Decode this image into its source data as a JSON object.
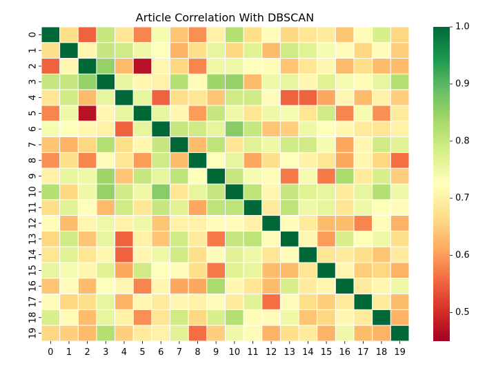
{
  "chart_data": {
    "type": "heatmap",
    "title": "Article Correlation With DBSCAN",
    "xlabel": "",
    "ylabel": "",
    "x": [
      "0",
      "1",
      "2",
      "3",
      "4",
      "5",
      "6",
      "7",
      "8",
      "9",
      "10",
      "11",
      "12",
      "13",
      "14",
      "15",
      "16",
      "17",
      "18",
      "19"
    ],
    "y": [
      "0",
      "1",
      "2",
      "3",
      "4",
      "5",
      "6",
      "7",
      "8",
      "9",
      "10",
      "11",
      "12",
      "13",
      "14",
      "15",
      "16",
      "17",
      "18",
      "19"
    ],
    "colormap": "RdYlGn",
    "vmin": 0.45,
    "vmax": 1.0,
    "colorbar": {
      "ticks": [
        1.0,
        0.9,
        0.8,
        0.7,
        0.6,
        0.5
      ],
      "tick_labels": [
        "1.0",
        "0.9",
        "0.8",
        "0.7",
        "0.6",
        "0.5"
      ]
    },
    "grid": true,
    "values": [
      [
        1.0,
        0.67,
        0.55,
        0.8,
        0.68,
        0.58,
        0.74,
        0.64,
        0.59,
        0.7,
        0.82,
        0.67,
        0.72,
        0.66,
        0.68,
        0.69,
        0.64,
        0.72,
        0.78,
        0.66
      ],
      [
        0.67,
        1.0,
        0.71,
        0.8,
        0.79,
        0.75,
        0.73,
        0.62,
        0.67,
        0.76,
        0.66,
        0.77,
        0.63,
        0.79,
        0.77,
        0.74,
        0.72,
        0.66,
        0.72,
        0.65
      ],
      [
        0.55,
        0.71,
        1.0,
        0.85,
        0.63,
        0.47,
        0.71,
        0.66,
        0.58,
        0.75,
        0.75,
        0.73,
        0.72,
        0.64,
        0.68,
        0.71,
        0.63,
        0.67,
        0.63,
        0.63
      ],
      [
        0.8,
        0.8,
        0.85,
        1.0,
        0.76,
        0.71,
        0.7,
        0.82,
        0.72,
        0.84,
        0.85,
        0.63,
        0.75,
        0.76,
        0.71,
        0.77,
        0.74,
        0.72,
        0.76,
        0.82
      ],
      [
        0.68,
        0.79,
        0.63,
        0.76,
        1.0,
        0.76,
        0.55,
        0.67,
        0.68,
        0.64,
        0.79,
        0.79,
        0.72,
        0.55,
        0.55,
        0.61,
        0.71,
        0.63,
        0.7,
        0.65
      ],
      [
        0.58,
        0.75,
        0.47,
        0.71,
        0.76,
        1.0,
        0.76,
        0.71,
        0.6,
        0.8,
        0.75,
        0.68,
        0.75,
        0.74,
        0.68,
        0.79,
        0.58,
        0.74,
        0.59,
        0.69
      ],
      [
        0.74,
        0.73,
        0.71,
        0.7,
        0.55,
        0.76,
        1.0,
        0.8,
        0.79,
        0.76,
        0.86,
        0.8,
        0.64,
        0.65,
        0.75,
        0.73,
        0.71,
        0.69,
        0.68,
        0.7
      ],
      [
        0.64,
        0.62,
        0.66,
        0.82,
        0.67,
        0.71,
        0.8,
        1.0,
        0.63,
        0.81,
        0.68,
        0.77,
        0.75,
        0.79,
        0.79,
        0.74,
        0.61,
        0.71,
        0.79,
        0.77
      ],
      [
        0.59,
        0.67,
        0.58,
        0.72,
        0.68,
        0.6,
        0.79,
        0.63,
        1.0,
        0.73,
        0.76,
        0.61,
        0.67,
        0.73,
        0.7,
        0.68,
        0.61,
        0.71,
        0.66,
        0.56
      ],
      [
        0.7,
        0.76,
        0.75,
        0.84,
        0.64,
        0.8,
        0.76,
        0.81,
        0.73,
        1.0,
        0.8,
        0.74,
        0.72,
        0.57,
        0.74,
        0.57,
        0.83,
        0.69,
        0.78,
        0.65
      ],
      [
        0.82,
        0.66,
        0.75,
        0.85,
        0.79,
        0.75,
        0.86,
        0.68,
        0.76,
        0.8,
        1.0,
        0.81,
        0.71,
        0.8,
        0.77,
        0.76,
        0.69,
        0.76,
        0.82,
        0.75
      ],
      [
        0.67,
        0.77,
        0.73,
        0.63,
        0.79,
        0.68,
        0.8,
        0.77,
        0.61,
        0.81,
        0.81,
        1.0,
        0.69,
        0.81,
        0.75,
        0.76,
        0.68,
        0.75,
        0.73,
        0.72
      ],
      [
        0.72,
        0.63,
        0.71,
        0.75,
        0.7,
        0.75,
        0.64,
        0.7,
        0.7,
        0.72,
        0.72,
        0.7,
        1.0,
        0.72,
        0.69,
        0.63,
        0.63,
        0.58,
        0.72,
        0.62
      ],
      [
        0.66,
        0.79,
        0.64,
        0.76,
        0.55,
        0.7,
        0.64,
        0.79,
        0.69,
        0.57,
        0.8,
        0.81,
        0.72,
        1.0,
        0.71,
        0.6,
        0.78,
        0.73,
        0.75,
        0.67
      ],
      [
        0.68,
        0.77,
        0.68,
        0.71,
        0.55,
        0.71,
        0.75,
        0.79,
        0.67,
        0.72,
        0.77,
        0.75,
        0.68,
        0.72,
        1.0,
        0.68,
        0.69,
        0.67,
        0.64,
        0.69
      ],
      [
        0.76,
        0.74,
        0.71,
        0.77,
        0.61,
        0.79,
        0.73,
        0.72,
        0.67,
        0.57,
        0.77,
        0.76,
        0.63,
        0.63,
        0.68,
        1.0,
        0.71,
        0.65,
        0.66,
        0.62
      ],
      [
        0.64,
        0.72,
        0.63,
        0.73,
        0.71,
        0.58,
        0.71,
        0.61,
        0.61,
        0.83,
        0.71,
        0.68,
        0.63,
        0.78,
        0.69,
        0.71,
        1.0,
        0.69,
        0.71,
        0.75
      ],
      [
        0.72,
        0.66,
        0.67,
        0.76,
        0.62,
        0.71,
        0.69,
        0.71,
        0.7,
        0.72,
        0.69,
        0.77,
        0.56,
        0.72,
        0.67,
        0.65,
        0.69,
        1.0,
        0.69,
        0.63
      ],
      [
        0.78,
        0.72,
        0.63,
        0.76,
        0.7,
        0.59,
        0.68,
        0.79,
        0.66,
        0.78,
        0.82,
        0.72,
        0.72,
        0.75,
        0.64,
        0.66,
        0.71,
        0.69,
        1.0,
        0.62
      ],
      [
        0.66,
        0.65,
        0.63,
        0.82,
        0.65,
        0.69,
        0.7,
        0.77,
        0.56,
        0.65,
        0.75,
        0.72,
        0.62,
        0.67,
        0.69,
        0.62,
        0.75,
        0.63,
        0.62,
        1.0
      ]
    ]
  }
}
